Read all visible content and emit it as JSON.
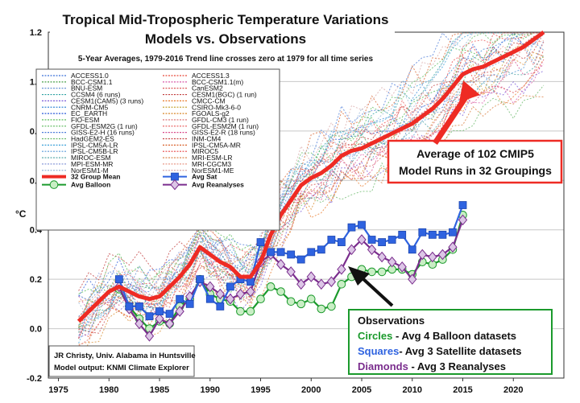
{
  "chart_data": {
    "type": "line",
    "title": "Tropical Mid-Tropospheric Temperature Variations",
    "subtitle": "Models vs. Observations",
    "note": "5-Year Averages, 1979-2016 Trend line crosses zero at 1979 for all time series",
    "ylabel": "°C",
    "xlim": [
      1974,
      2025
    ],
    "ylim": [
      -0.2,
      1.2
    ],
    "x_ticks": [
      "1975",
      "1980",
      "1985",
      "1990",
      "1995",
      "2000",
      "2005",
      "2010",
      "2015",
      "2020"
    ],
    "y_ticks": [
      "-0.2",
      "0.0",
      "0.2",
      "0.4",
      "0.6",
      "0.8",
      "1.0",
      "1.2"
    ],
    "grid": "horizontal",
    "legend_position": "upper-left",
    "legend_models": [
      "ACCESS1.0",
      "ACCESS1.3",
      "BCC-CSM1.1",
      "BCC-CSM1.1(m)",
      "BNU-ESM",
      "CanESM2",
      "CCSM4 (6 runs)",
      "CESM1(BGC) (1 run)",
      "CESM1(CAM5) (3 runs)",
      "CMCC-CM",
      "CNRM-CM5",
      "CSIRO-Mk3-6-0",
      "EC_EARTH",
      "FGOALS-g2",
      "FIO-ESM",
      "GFDL-CM3 (1 run)",
      "GFDL-ESM2G (1 run)",
      "GFDL-ESM2M (1 run)",
      "GISS-E2-H (16 runs)",
      "GISS-E2-R (18 runs)",
      "HadGEM2-ES",
      "INM-CM4",
      "IPSL-CM5A-LR",
      "IPSL-CM5A-MR",
      "IPSL-CM5B-LR",
      "MIROC5",
      "MIROC-ESM",
      "MRI-ESM-LR",
      "MPI-ESM-MR",
      "MRI-CGCM3",
      "NorESM1-M",
      "NorESM1-ME"
    ],
    "legend_models_colors": [
      "#3a6fd8",
      "#e8493a",
      "#4aa04a",
      "#d85aa8",
      "#5a8ad0",
      "#d84848",
      "#2aa0a0",
      "#c03a3a",
      "#7a5ad8",
      "#e87a2a",
      "#3a8ad8",
      "#c8a83a",
      "#2a5ad8",
      "#d8882a",
      "#4ab84a",
      "#d86a6a",
      "#5ab85a",
      "#e85a5a",
      "#4a7ad8",
      "#d84a8a",
      "#6ab86a",
      "#c84848",
      "#3aa0d8",
      "#d8602a",
      "#5a9ad8",
      "#e84848",
      "#4aa0a0",
      "#d87a3a",
      "#8a9ad8",
      "#e89a8a",
      "#9ab8d8",
      "#d8a8a8"
    ],
    "legend_series": [
      {
        "name": "32 Group Mean",
        "color": "#ee2b24",
        "marker": "line"
      },
      {
        "name": "Avg Sat",
        "color": "#2f63e0",
        "marker": "square"
      },
      {
        "name": "Avg Balloon",
        "color": "#1b9a2c",
        "marker": "circle"
      },
      {
        "name": "Avg Reanalyses",
        "color": "#7a2d8d",
        "marker": "diamond"
      }
    ],
    "series": [
      {
        "name": "32 Group Mean",
        "color": "#ee2b24",
        "x": [
          1977,
          1978,
          1979,
          1980,
          1981,
          1982,
          1983,
          1984,
          1985,
          1986,
          1987,
          1988,
          1989,
          1990,
          1991,
          1992,
          1993,
          1994,
          1995,
          1996,
          1997,
          1998,
          1999,
          2000,
          2001,
          2002,
          2003,
          2004,
          2005,
          2006,
          2007,
          2008,
          2009,
          2010,
          2011,
          2012,
          2013,
          2014,
          2015,
          2016,
          2017,
          2018,
          2019,
          2020,
          2021,
          2022,
          2023
        ],
        "values": [
          0.03,
          0.07,
          0.11,
          0.15,
          0.17,
          0.15,
          0.13,
          0.12,
          0.13,
          0.17,
          0.21,
          0.26,
          0.33,
          0.3,
          0.27,
          0.25,
          0.21,
          0.21,
          0.27,
          0.38,
          0.46,
          0.52,
          0.58,
          0.61,
          0.63,
          0.66,
          0.7,
          0.72,
          0.73,
          0.75,
          0.77,
          0.79,
          0.81,
          0.83,
          0.86,
          0.89,
          0.93,
          0.98,
          1.03,
          1.05,
          1.06,
          1.08,
          1.1,
          1.12,
          1.14,
          1.17,
          1.2
        ]
      },
      {
        "name": "Avg Sat",
        "color": "#2f63e0",
        "marker": "square",
        "x": [
          1981,
          1982,
          1983,
          1984,
          1985,
          1986,
          1987,
          1988,
          1989,
          1990,
          1991,
          1992,
          1993,
          1994,
          1995,
          1996,
          1997,
          1998,
          1999,
          2000,
          2001,
          2002,
          2003,
          2004,
          2005,
          2006,
          2007,
          2008,
          2009,
          2010,
          2011,
          2012,
          2013,
          2014,
          2015
        ],
        "values": [
          0.2,
          0.09,
          0.09,
          0.05,
          0.07,
          0.06,
          0.12,
          0.1,
          0.2,
          0.12,
          0.09,
          0.17,
          0.2,
          0.19,
          0.35,
          0.31,
          0.31,
          0.3,
          0.28,
          0.31,
          0.32,
          0.36,
          0.35,
          0.41,
          0.42,
          0.36,
          0.35,
          0.36,
          0.38,
          0.32,
          0.39,
          0.38,
          0.38,
          0.39,
          0.5
        ]
      },
      {
        "name": "Avg Balloon",
        "color": "#1b9a2c",
        "marker": "circle",
        "x": [
          1981,
          1982,
          1983,
          1984,
          1985,
          1986,
          1987,
          1988,
          1989,
          1990,
          1991,
          1992,
          1993,
          1994,
          1995,
          1996,
          1997,
          1998,
          1999,
          2000,
          2001,
          2002,
          2003,
          2004,
          2005,
          2006,
          2007,
          2008,
          2009,
          2010,
          2011,
          2012,
          2013,
          2014,
          2015
        ],
        "values": [
          0.16,
          0.09,
          0.04,
          0.0,
          0.03,
          0.02,
          0.09,
          0.12,
          0.2,
          0.14,
          0.12,
          0.11,
          0.07,
          0.07,
          0.12,
          0.17,
          0.15,
          0.11,
          0.1,
          0.12,
          0.08,
          0.09,
          0.18,
          0.21,
          0.24,
          0.23,
          0.23,
          0.24,
          0.24,
          0.22,
          0.27,
          0.26,
          0.28,
          0.32,
          0.46
        ]
      },
      {
        "name": "Avg Reanalyses",
        "color": "#7a2d8d",
        "marker": "diamond",
        "x": [
          1981,
          1982,
          1983,
          1984,
          1985,
          1986,
          1987,
          1988,
          1989,
          1990,
          1991,
          1992,
          1993,
          1994,
          1995,
          1996,
          1997,
          1998,
          1999,
          2000,
          2001,
          2002,
          2003,
          2004,
          2005,
          2006,
          2007,
          2008,
          2009,
          2010,
          2011,
          2012,
          2013,
          2014,
          2015
        ],
        "values": [
          0.17,
          0.08,
          0.02,
          -0.03,
          0.04,
          0.02,
          0.07,
          0.13,
          0.19,
          0.17,
          0.14,
          0.12,
          0.14,
          0.15,
          0.27,
          0.3,
          0.26,
          0.23,
          0.18,
          0.21,
          0.18,
          0.19,
          0.24,
          0.32,
          0.36,
          0.32,
          0.29,
          0.27,
          0.25,
          0.2,
          0.3,
          0.29,
          0.3,
          0.33,
          0.44
        ]
      }
    ],
    "annotations": {
      "model_box": [
        "Average of 102 CMIP5",
        "Model Runs in 32 Groupings"
      ],
      "obs_box": {
        "heading": "Observations",
        "lines": [
          {
            "key": "Circles",
            "rest": " - Avg 4 Balloon datasets",
            "color": "#1b9a2c"
          },
          {
            "key": "Squares",
            "rest": "- Avg 3 Satellite datasets",
            "color": "#2f63e0"
          },
          {
            "key": "Diamonds",
            "rest": " - Avg 3 Reanalyses",
            "color": "#7a2d8d"
          }
        ]
      },
      "credit": [
        "JR Christy, Univ. Alabama in Huntsville",
        "Model output: KNMI Climate Explorer"
      ]
    }
  }
}
